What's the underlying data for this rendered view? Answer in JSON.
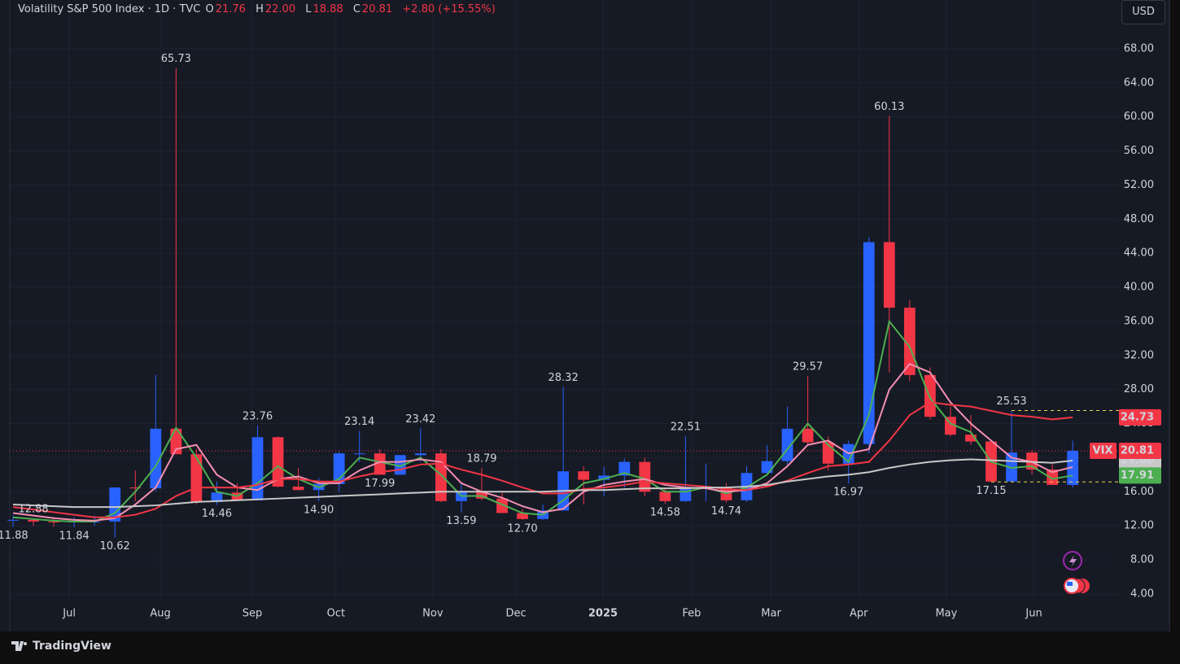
{
  "header": {
    "title": "Volatility S&P 500 Index · 1D · TVC",
    "ohlc": [
      {
        "key": "O",
        "value": "21.76"
      },
      {
        "key": "H",
        "value": "22.00"
      },
      {
        "key": "L",
        "value": "18.88"
      },
      {
        "key": "C",
        "value": "20.81"
      }
    ],
    "change": "+2.80 (+15.55%)",
    "currency": "USD",
    "brand": "TradingView"
  },
  "chart_data": {
    "type": "candlestick",
    "symbol": "VIX",
    "up_color": "#2962ff",
    "down_color": "#f23645",
    "categories": [
      null,
      null,
      null,
      null,
      null,
      null,
      null,
      null,
      null,
      null,
      null,
      null,
      null,
      null,
      null,
      null,
      null,
      null,
      null,
      null,
      null,
      null,
      null,
      null,
      null,
      null,
      null,
      null,
      null,
      null,
      null,
      null,
      null,
      null,
      null,
      null,
      null,
      null,
      null,
      null,
      null,
      null,
      null,
      null,
      null,
      null,
      null,
      null,
      null,
      null,
      null,
      null,
      null
    ],
    "open": [
      12.7,
      12.7,
      12.5,
      12.4,
      12.5,
      12.5,
      16.5,
      16.4,
      23.4,
      20.4,
      14.8,
      15.9,
      15.0,
      22.4,
      16.6,
      16.2,
      16.9,
      20.5,
      20.5,
      18.0,
      20.3,
      20.5,
      14.9,
      16.1,
      15.2,
      13.5,
      12.8,
      13.8,
      18.4,
      17.4,
      17.9,
      19.5,
      16.0,
      14.9,
      16.4,
      16.5,
      15.0,
      18.2,
      19.6,
      23.4,
      21.8,
      19.3,
      21.6,
      45.3,
      37.6,
      29.7,
      24.8,
      22.7,
      21.9,
      17.2,
      20.6,
      18.6,
      16.8
    ],
    "high": [
      13.2,
      12.88,
      13.0,
      13.0,
      13.2,
      16.5,
      18.5,
      29.7,
      65.73,
      21.0,
      17.2,
      17.0,
      23.76,
      22.5,
      18.8,
      17.6,
      20.7,
      23.14,
      21.0,
      20.0,
      23.42,
      21.0,
      17.0,
      18.79,
      15.9,
      14.0,
      14.5,
      28.32,
      19.0,
      18.9,
      19.9,
      20.0,
      16.5,
      22.51,
      19.3,
      17.0,
      19.0,
      21.5,
      26.0,
      29.57,
      22.5,
      22.0,
      45.9,
      60.13,
      38.5,
      30.6,
      26.0,
      25.0,
      22.0,
      25.53,
      20.9,
      19.4,
      22.0
    ],
    "low": [
      11.88,
      12.0,
      11.9,
      11.84,
      12.0,
      10.62,
      14.9,
      16.0,
      20.5,
      14.5,
      14.46,
      14.9,
      15.0,
      16.5,
      16.2,
      14.9,
      16.0,
      19.5,
      17.99,
      18.0,
      19.5,
      14.8,
      13.59,
      15.0,
      13.5,
      12.7,
      12.7,
      13.9,
      14.5,
      15.5,
      16.5,
      15.5,
      14.58,
      14.8,
      14.9,
      14.74,
      14.8,
      17.9,
      19.0,
      21.5,
      18.5,
      16.97,
      20.5,
      30.0,
      29.0,
      24.5,
      22.5,
      21.5,
      17.15,
      17.5,
      18.0,
      16.9,
      16.5
    ],
    "close": [
      12.7,
      12.5,
      12.4,
      12.5,
      12.5,
      16.5,
      16.4,
      23.4,
      20.4,
      14.8,
      15.9,
      15.0,
      22.4,
      16.6,
      16.2,
      16.9,
      20.5,
      20.5,
      18.0,
      20.3,
      20.5,
      14.9,
      16.1,
      15.2,
      13.5,
      12.8,
      13.8,
      18.4,
      17.4,
      17.9,
      19.5,
      16.0,
      14.9,
      16.4,
      16.5,
      15.0,
      18.2,
      19.6,
      23.4,
      21.8,
      19.3,
      21.6,
      45.3,
      37.6,
      29.7,
      24.8,
      22.7,
      21.9,
      17.2,
      20.6,
      18.6,
      16.8,
      20.81
    ],
    "series": [
      {
        "color": "#4caf50",
        "values": [
          13,
          12.8,
          12.6,
          12.5,
          12.5,
          13.5,
          16,
          19,
          23.5,
          20,
          16,
          15.5,
          17,
          19,
          17.5,
          16.5,
          17.5,
          20,
          19.5,
          19,
          20,
          18,
          15.5,
          15.5,
          14.5,
          13.5,
          13.3,
          15,
          17,
          17.5,
          18.2,
          17.5,
          16,
          16,
          16.5,
          15.8,
          16.5,
          18,
          21,
          24,
          21.5,
          19.5,
          25,
          36,
          33,
          27,
          24,
          23,
          19.5,
          18.8,
          19,
          17.5,
          17.91
        ]
      },
      {
        "color": "#f48fb1",
        "values": [
          13.5,
          13.2,
          12.9,
          12.7,
          12.6,
          12.9,
          14.5,
          16.5,
          21,
          21.5,
          18,
          16.5,
          16.2,
          17.5,
          17.8,
          17,
          17,
          18.5,
          19.5,
          19.5,
          19.8,
          19.5,
          17,
          16,
          15.3,
          14.3,
          13.6,
          14,
          16,
          16.8,
          17.2,
          17.5,
          16.8,
          16.5,
          16.4,
          16,
          16.2,
          17,
          19,
          21.5,
          22,
          20.5,
          21,
          28,
          31,
          30,
          26.5,
          24,
          22,
          20,
          19.5,
          18.3,
          18.9
        ]
      },
      {
        "color": "#f23645",
        "values": [
          14.2,
          13.9,
          13.6,
          13.3,
          13,
          13,
          13.3,
          14,
          15.5,
          16.5,
          16.5,
          16.5,
          16.8,
          17.5,
          17.5,
          17.2,
          17.2,
          17.8,
          18.3,
          18.6,
          19.2,
          19.3,
          18.6,
          18,
          17.3,
          16.5,
          15.8,
          15.8,
          16.3,
          16.5,
          16.8,
          17.2,
          17,
          16.8,
          16.6,
          16.3,
          16.2,
          16.6,
          17.3,
          18.2,
          19,
          19.2,
          19.5,
          22,
          25,
          26.5,
          26.2,
          26,
          25.5,
          25,
          24.8,
          24.5,
          24.73
        ]
      },
      {
        "color": "#c8c8c8",
        "values": [
          14.5,
          14.4,
          14.3,
          14.2,
          14.2,
          14.2,
          14.3,
          14.4,
          14.6,
          14.8,
          14.9,
          15.0,
          15.1,
          15.2,
          15.3,
          15.4,
          15.5,
          15.6,
          15.7,
          15.8,
          15.9,
          16.0,
          16.0,
          16.0,
          16.0,
          16.0,
          16.0,
          16.1,
          16.2,
          16.2,
          16.3,
          16.4,
          16.4,
          16.4,
          16.5,
          16.5,
          16.6,
          16.8,
          17.2,
          17.5,
          17.8,
          18.0,
          18.3,
          18.8,
          19.2,
          19.5,
          19.7,
          19.8,
          19.7,
          19.6,
          19.5,
          19.4,
          19.66
        ]
      }
    ],
    "annotations": [
      {
        "x": 0,
        "value": 11.88,
        "kind": "low"
      },
      {
        "x": 1,
        "value": 12.88,
        "kind": "high"
      },
      {
        "x": 3,
        "value": 11.84,
        "kind": "low"
      },
      {
        "x": 5,
        "value": 10.62,
        "kind": "low"
      },
      {
        "x": 8,
        "value": 65.73,
        "kind": "high"
      },
      {
        "x": 10,
        "value": 14.46,
        "kind": "low"
      },
      {
        "x": 12,
        "value": 23.76,
        "kind": "high"
      },
      {
        "x": 15,
        "value": 14.9,
        "label": "14.90",
        "kind": "low"
      },
      {
        "x": 17,
        "value": 23.14,
        "kind": "high"
      },
      {
        "x": 18,
        "value": 17.99,
        "kind": "low"
      },
      {
        "x": 20,
        "value": 23.42,
        "kind": "high"
      },
      {
        "x": 22,
        "value": 13.59,
        "kind": "low"
      },
      {
        "x": 23,
        "value": 18.79,
        "kind": "high"
      },
      {
        "x": 25,
        "value": 12.7,
        "label": "12.70",
        "kind": "low"
      },
      {
        "x": 27,
        "value": 28.32,
        "kind": "high"
      },
      {
        "x": 32,
        "value": 14.58,
        "kind": "low"
      },
      {
        "x": 33,
        "value": 22.51,
        "kind": "high"
      },
      {
        "x": 35,
        "value": 14.74,
        "kind": "low"
      },
      {
        "x": 39,
        "value": 29.57,
        "kind": "high"
      },
      {
        "x": 41,
        "value": 16.97,
        "kind": "low"
      },
      {
        "x": 43,
        "value": 60.13,
        "kind": "high"
      },
      {
        "x": 48,
        "value": 17.15,
        "kind": "low"
      },
      {
        "x": 49,
        "value": 25.53,
        "kind": "high"
      }
    ],
    "xlim": [
      -0.16,
      54.27
    ],
    "xticks": [
      {
        "value": 2.76,
        "label": "Jul"
      },
      {
        "value": 7.23,
        "label": "Aug"
      },
      {
        "value": 11.74,
        "label": "Sep"
      },
      {
        "value": 15.85,
        "label": "Oct"
      },
      {
        "value": 20.6,
        "label": "Nov"
      },
      {
        "value": 24.68,
        "label": "Dec"
      },
      {
        "value": 28.95,
        "label": "2025"
      },
      {
        "value": 33.3,
        "label": "Feb"
      },
      {
        "value": 37.2,
        "label": "Mar"
      },
      {
        "value": 41.5,
        "label": "Apr"
      },
      {
        "value": 45.8,
        "label": "May"
      },
      {
        "value": 50.1,
        "label": "Jun"
      }
    ],
    "ylim": [
      3.04,
      72.0
    ],
    "yticks": [
      {
        "value": 4,
        "label": "4.00"
      },
      {
        "value": 8,
        "label": "8.00"
      },
      {
        "value": 12,
        "label": "12.00"
      },
      {
        "value": 16,
        "label": "16.00"
      },
      {
        "value": 20,
        "label": "20.00"
      },
      {
        "value": 24,
        "label": "24.00"
      },
      {
        "value": 28,
        "label": "28.00"
      },
      {
        "value": 32,
        "label": "32.00"
      },
      {
        "value": 36,
        "label": "36.00"
      },
      {
        "value": 40,
        "label": "40.00"
      },
      {
        "value": 44,
        "label": "44.00"
      },
      {
        "value": 48,
        "label": "48.00"
      },
      {
        "value": 52,
        "label": "52.00"
      },
      {
        "value": 56,
        "label": "56.00"
      },
      {
        "value": 60,
        "label": "60.00"
      },
      {
        "value": 64,
        "label": "64.00"
      },
      {
        "value": 68,
        "label": "68.00"
      }
    ],
    "grid": true
  }
}
